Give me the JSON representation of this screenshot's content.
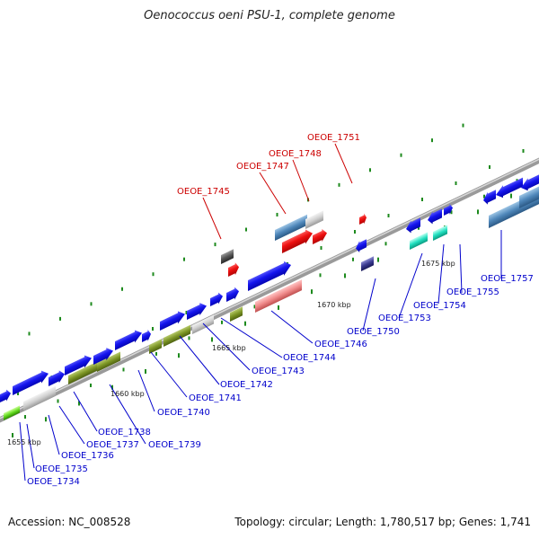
{
  "title": "Oenococcus oeni PSU-1, complete genome",
  "footer": {
    "accession": "Accession: NC_008528",
    "summary": "Topology: circular; Length: 1,780,517 bp; Genes: 1,741"
  },
  "colors": {
    "forward_gene_label": "#0000cc",
    "highlight_gene_label": "#cc0000",
    "backbone": "#8c8c8c"
  },
  "scale_labels": [
    "1655 kbp",
    "1660 kbp",
    "1665 kbp",
    "1670 kbp",
    "1675 kbp"
  ],
  "gene_labels_blue": [
    "OEOE_1734",
    "OEOE_1735",
    "OEOE_1736",
    "OEOE_1737",
    "OEOE_1738",
    "OEOE_1739",
    "OEOE_1740",
    "OEOE_1741",
    "OEOE_1742",
    "OEOE_1743",
    "OEOE_1744",
    "OEOE_1746",
    "OEOE_1750",
    "OEOE_1753",
    "OEOE_1754",
    "OEOE_1755",
    "OEOE_1757"
  ],
  "gene_labels_red": [
    "OEOE_1745",
    "OEOE_1747",
    "OEOE_1748",
    "OEOE_1751"
  ]
}
